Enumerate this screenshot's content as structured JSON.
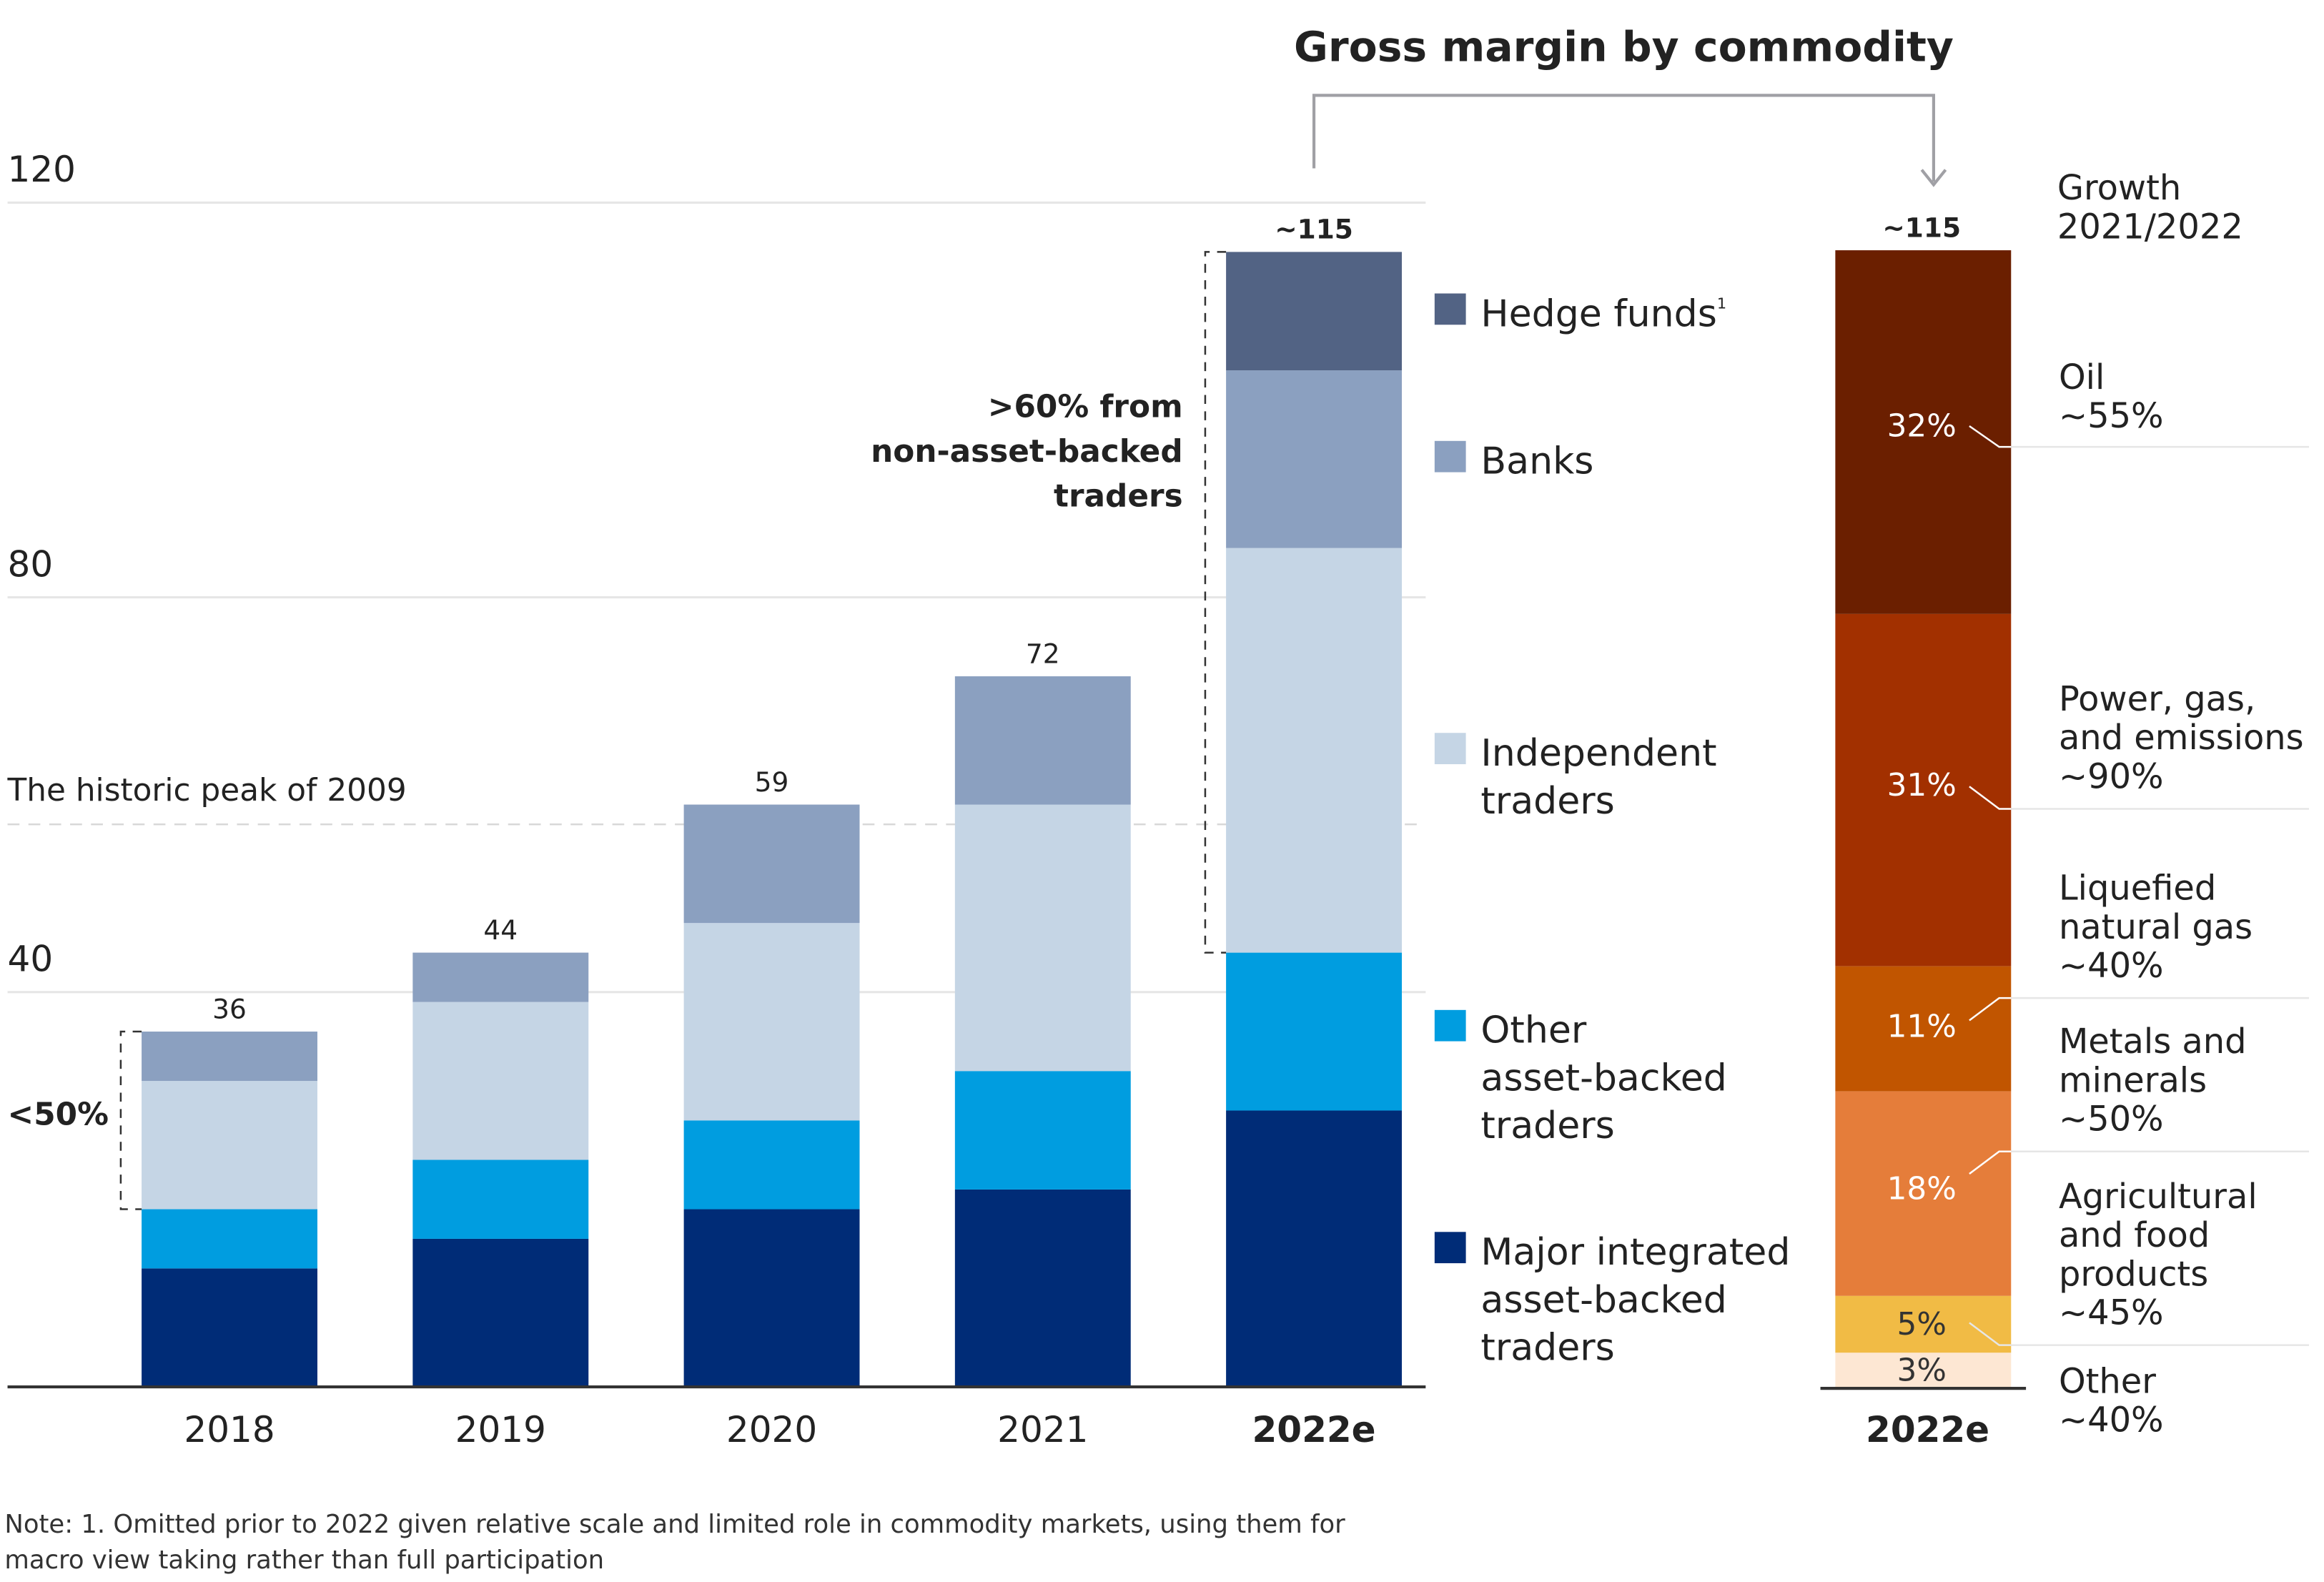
{
  "chart_data": [
    {
      "type": "bar",
      "stacked": true,
      "title": "",
      "xlabel": "",
      "ylabel": "",
      "ylim": [
        0,
        120
      ],
      "yticks": [
        40,
        80,
        120
      ],
      "grid": true,
      "categories": [
        "2018",
        "2019",
        "2020",
        "2021",
        "2022e"
      ],
      "bold_categories": [
        "2022e"
      ],
      "totals": [
        "36",
        "44",
        "59",
        "72",
        "~115"
      ],
      "series": [
        {
          "name": "Major integrated asset-backed traders",
          "color": "#002c77",
          "values": [
            12,
            15,
            18,
            20,
            28
          ]
        },
        {
          "name": "Other asset-backed traders",
          "color": "#009de0",
          "values": [
            6,
            8,
            9,
            12,
            16
          ]
        },
        {
          "name": "Independent traders",
          "color": "#c5d5e5",
          "values": [
            13,
            16,
            20,
            27,
            41
          ]
        },
        {
          "name": "Banks",
          "color": "#8ba0c0",
          "values": [
            5,
            5,
            12,
            13,
            18
          ]
        },
        {
          "name": "Hedge funds",
          "color": "#526384",
          "values": [
            0,
            0,
            0,
            0,
            12
          ]
        }
      ],
      "legend": {
        "placement": "right",
        "items": [
          {
            "lines": [
              "Hedge funds"
            ],
            "sup": "1",
            "color": "#526384"
          },
          {
            "lines": [
              "Banks"
            ],
            "color": "#8ba0c0"
          },
          {
            "lines": [
              "Independent",
              "traders"
            ],
            "color": "#c5d5e5"
          },
          {
            "lines": [
              "Other",
              "asset-backed",
              "traders"
            ],
            "color": "#009de0"
          },
          {
            "lines": [
              "Major integrated",
              "asset-backed",
              "traders"
            ],
            "color": "#002c77"
          }
        ]
      },
      "reference_line": {
        "label": "The historic peak of 2009",
        "value": 57
      },
      "annotations": [
        {
          "text": [
            "<50%"
          ],
          "category": "2018"
        },
        {
          "text": [
            ">60% from",
            "non-asset-backed",
            "traders"
          ],
          "category": "2022e"
        }
      ]
    },
    {
      "type": "bar",
      "stacked": true,
      "title": "Gross margin by commodity",
      "category": "2022e",
      "total": "~115",
      "growth_header": [
        "Growth",
        "2021/2022"
      ],
      "segments": [
        {
          "name": "Oil",
          "share": 32,
          "label": "32%",
          "growth": "~55%",
          "color": "#6b1f00",
          "label_color": "#ffffff"
        },
        {
          "name": "Power, gas, and emissions",
          "share": 31,
          "label": "31%",
          "growth": "~90%",
          "color": "#a23000",
          "label_color": "#ffffff"
        },
        {
          "name": "Liquefied natural gas",
          "share": 11,
          "label": "11%",
          "growth": "~40%",
          "color": "#c15500",
          "label_color": "#ffffff"
        },
        {
          "name": "Metals and minerals",
          "share": 18,
          "label": "18%",
          "growth": "~50%",
          "color": "#e57d3a",
          "label_color": "#ffffff"
        },
        {
          "name": "Agricultural and food products",
          "share": 5,
          "label": "5%",
          "growth": "~45%",
          "color": "#f1bb45",
          "label_color": "#333333"
        },
        {
          "name": "Other",
          "share": 3,
          "label": "3%",
          "growth": "~40%",
          "color": "#fde7d3",
          "label_color": "#333333"
        }
      ],
      "growth_labels": [
        {
          "lines": [
            "Oil",
            "~55%"
          ]
        },
        {
          "lines": [
            "Power, gas,",
            "and emissions",
            "~90%"
          ]
        },
        {
          "lines": [
            "Liquefied",
            "natural gas",
            "~40%"
          ]
        },
        {
          "lines": [
            "Metals and",
            "minerals",
            "~50%"
          ]
        },
        {
          "lines": [
            "Agricultural",
            "and food",
            "products",
            "~45%"
          ]
        },
        {
          "lines": [
            "Other",
            "~40%"
          ]
        }
      ]
    }
  ],
  "note": [
    "Note: 1. Omitted prior to 2022 given relative scale and limited role in commodity markets, using them for",
    "macro view taking rather than full participation"
  ]
}
